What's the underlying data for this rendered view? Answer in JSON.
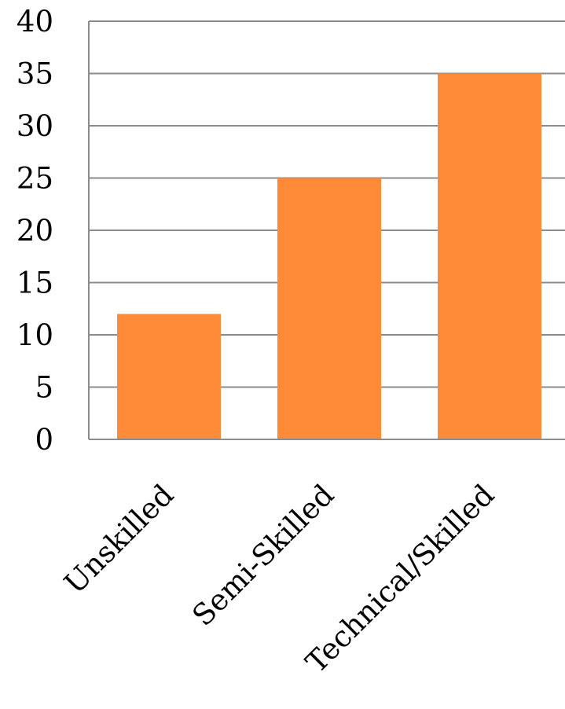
{
  "chart_data": {
    "type": "bar",
    "title": "",
    "xlabel": "",
    "ylabel": "",
    "categories": [
      "Unskilled",
      "Semi-Skilled",
      "Technical/Skilled"
    ],
    "values": [
      12,
      25,
      35
    ],
    "ylim": [
      0,
      40
    ],
    "yticks": [
      0,
      5,
      10,
      15,
      20,
      25,
      30,
      35,
      40
    ],
    "ytick_labels": [
      "0",
      "5",
      "10",
      "15",
      "20",
      "25",
      "30",
      "35",
      "40"
    ],
    "grid": true,
    "legend": "none",
    "colors": {
      "bar": "#FF8A37",
      "grid": "#8C8C8C",
      "axis": "#8C8C8C"
    }
  }
}
